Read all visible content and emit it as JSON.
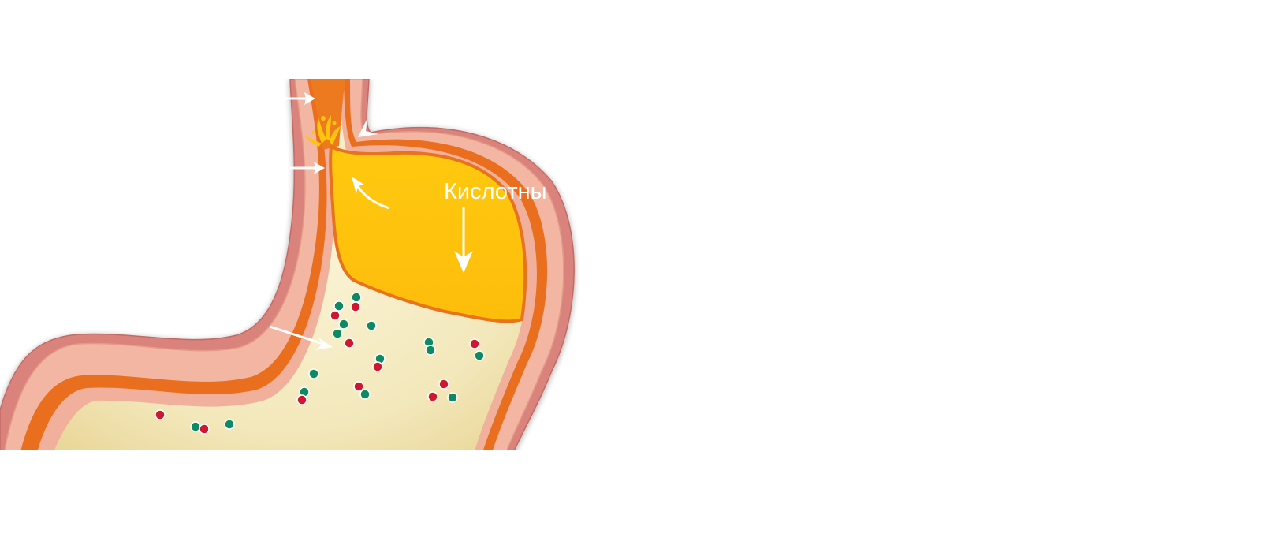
{
  "diagram": {
    "label": "Кислотны",
    "icons": {
      "organ": "stomach-cross-section-icon",
      "arrow": "arrow-icon"
    }
  },
  "colors": {
    "outer_wall": "#d9837c",
    "wall_layer": "#f3b6a2",
    "inner_lining": "#e96f1e",
    "esophagus_lumen": "#ee7a1f",
    "acid_pocket": "#fec40e",
    "food_content": "#f3e9bd",
    "dot_red": "#cf1830",
    "dot_green": "#0d8a63",
    "arrows": "#ffffff",
    "background": "#ffffff"
  }
}
